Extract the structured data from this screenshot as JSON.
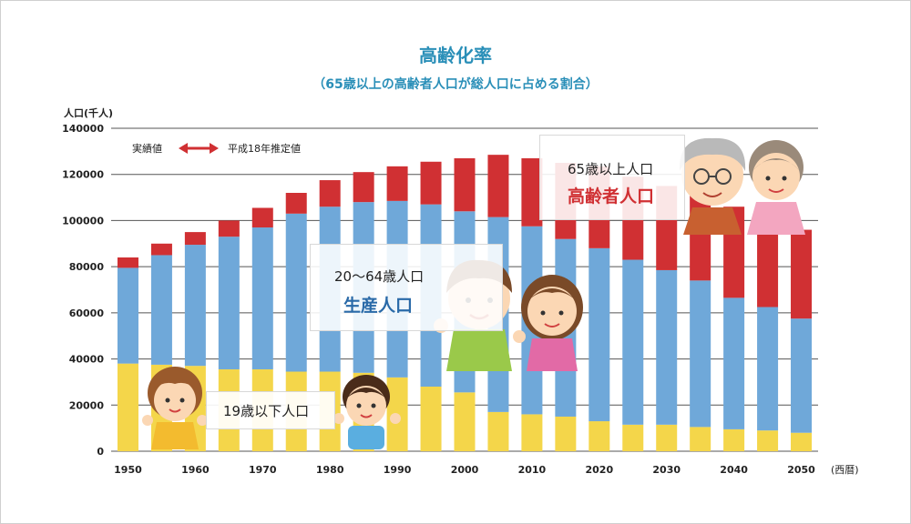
{
  "chart_data": {
    "type": "bar",
    "stacked": true,
    "title": "高齢化率",
    "subtitle": "（65歳以上の高齢者人口が総人口に占める割合）",
    "ylabel": "人口(千人)",
    "xlabel": "(西暦)",
    "ylim": [
      0,
      140000
    ],
    "yticks": [
      0,
      20000,
      40000,
      60000,
      80000,
      100000,
      120000,
      140000
    ],
    "grid": true,
    "x": [
      1950,
      1955,
      1960,
      1965,
      1970,
      1975,
      1980,
      1985,
      1990,
      1995,
      2000,
      2005,
      2010,
      2015,
      2020,
      2025,
      2030,
      2035,
      2040,
      2045,
      2050
    ],
    "xtick_labels": [
      "1950",
      "1960",
      "1970",
      "1980",
      "1990",
      "2000",
      "2010",
      "2020",
      "2030",
      "2040",
      "2050"
    ],
    "series": [
      {
        "name": "19歳以下人口",
        "color": "#f4d64a",
        "values": [
          38000,
          37500,
          37000,
          35500,
          35500,
          34500,
          34500,
          34000,
          32000,
          28000,
          25500,
          17000,
          16000,
          15000,
          13000,
          11500,
          11500,
          10500,
          9500,
          9000,
          8000
        ]
      },
      {
        "name": "生産人口",
        "color": "#6fa8d9",
        "values": [
          41500,
          47500,
          52500,
          57500,
          61500,
          68500,
          71500,
          74000,
          76500,
          79000,
          78500,
          84500,
          81500,
          77000,
          75000,
          71500,
          67000,
          63500,
          57000,
          53500,
          49500
        ]
      },
      {
        "name": "高齢者人口",
        "color": "#d03033",
        "values": [
          4500,
          5000,
          5500,
          7000,
          8500,
          9000,
          11500,
          13000,
          15000,
          18500,
          23000,
          27000,
          29500,
          33000,
          35500,
          36000,
          36500,
          37000,
          39500,
          38500,
          38500
        ]
      }
    ],
    "legend": {
      "actual": "実績値",
      "estimate": "平成18年推定値",
      "estimate_from": 2010
    }
  },
  "callouts": {
    "elderly": {
      "line1": "65歳以上人口",
      "line2": "高齢者人口",
      "color": "#d03033"
    },
    "working": {
      "line1": "20～64歳人口",
      "line2": "生産人口",
      "color": "#2a6aa8"
    },
    "youth": {
      "line1": "19歳以下人口"
    }
  }
}
